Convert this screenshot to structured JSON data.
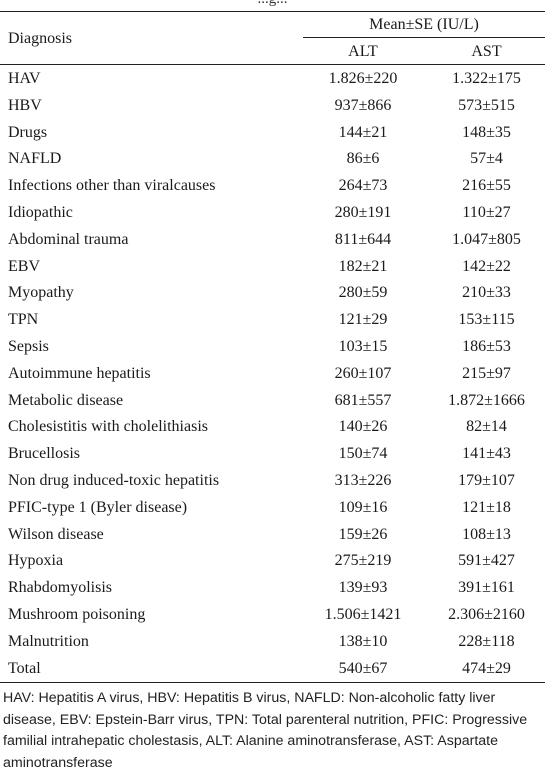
{
  "top_partial_text": "...g...",
  "table": {
    "header": {
      "diagnosis": "Diagnosis",
      "group": "Mean±SE (IU/L)",
      "alt": "ALT",
      "ast": "AST"
    },
    "rows": [
      {
        "diagnosis": "HAV",
        "alt": "1.826±220",
        "ast": "1.322±175"
      },
      {
        "diagnosis": "HBV",
        "alt": "937±866",
        "ast": "573±515"
      },
      {
        "diagnosis": "Drugs",
        "alt": "144±21",
        "ast": "148±35"
      },
      {
        "diagnosis": "NAFLD",
        "alt": "86±6",
        "ast": "57±4"
      },
      {
        "diagnosis": "Infections other than viralcauses",
        "alt": "264±73",
        "ast": "216±55"
      },
      {
        "diagnosis": "Idiopathic",
        "alt": "280±191",
        "ast": "110±27"
      },
      {
        "diagnosis": "Abdominal trauma",
        "alt": "811±644",
        "ast": "1.047±805"
      },
      {
        "diagnosis": "EBV",
        "alt": "182±21",
        "ast": "142±22"
      },
      {
        "diagnosis": "Myopathy",
        "alt": "280±59",
        "ast": "210±33"
      },
      {
        "diagnosis": "TPN",
        "alt": "121±29",
        "ast": "153±115"
      },
      {
        "diagnosis": "Sepsis",
        "alt": "103±15",
        "ast": "186±53"
      },
      {
        "diagnosis": "Autoimmune hepatitis",
        "alt": "260±107",
        "ast": "215±97"
      },
      {
        "diagnosis": "Metabolic disease",
        "alt": "681±557",
        "ast": "1.872±1666"
      },
      {
        "diagnosis": "Cholesistitis with cholelithiasis",
        "alt": "140±26",
        "ast": "82±14"
      },
      {
        "diagnosis": "Brucellosis",
        "alt": "150±74",
        "ast": "141±43"
      },
      {
        "diagnosis": "Non drug induced-toxic hepatitis",
        "alt": "313±226",
        "ast": "179±107"
      },
      {
        "diagnosis": "PFIC-type 1 (Byler disease)",
        "alt": "109±16",
        "ast": "121±18"
      },
      {
        "diagnosis": "Wilson disease",
        "alt": "159±26",
        "ast": "108±13"
      },
      {
        "diagnosis": "Hypoxia",
        "alt": "275±219",
        "ast": "591±427"
      },
      {
        "diagnosis": "Rhabdomyolisis",
        "alt": "139±93",
        "ast": "391±161"
      },
      {
        "diagnosis": "Mushroom poisoning",
        "alt": "1.506±1421",
        "ast": "2.306±2160"
      },
      {
        "diagnosis": "Malnutrition",
        "alt": "138±10",
        "ast": "228±118"
      },
      {
        "diagnosis": "Total",
        "alt": "540±67",
        "ast": "474±29"
      }
    ]
  },
  "footnote": "HAV: Hepatitis A virus, HBV: Hepatitis B virus, NAFLD: Non-alcoholic fatty liver disease, EBV: Epstein-Barr virus, TPN: Total parenteral nutrition, PFIC: Progressive familial intrahepatic cholestasis, ALT: Alanine aminotransferase, AST: Aspartate aminotransferase"
}
